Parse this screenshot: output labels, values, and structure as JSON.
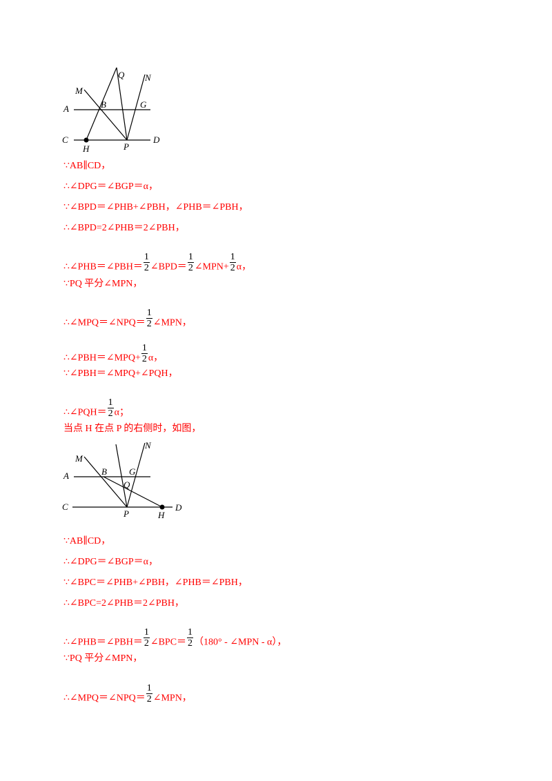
{
  "figure1": {
    "labels": {
      "Q": "Q",
      "N": "N",
      "M": "M",
      "A": "A",
      "B": "B",
      "G": "G",
      "C": "C",
      "H": "H",
      "P": "P",
      "D": "D"
    }
  },
  "figure2": {
    "labels": {
      "M": "M",
      "N": "N",
      "A": "A",
      "B": "B",
      "G": "G",
      "Q": "Q",
      "C": "C",
      "P": "P",
      "H": "H",
      "D": "D"
    }
  },
  "frac": {
    "num": "1",
    "den": "2"
  },
  "lines": {
    "l1": "∵AB∥CD，",
    "l2": "∴∠DPG＝∠BGP＝α，",
    "l3": "∵∠BPD＝∠PHB+∠PBH，∠PHB＝∠PBH，",
    "l4": "∴∠BPD=2∠PHB＝2∠PBH，",
    "l5a": "∴∠PHB＝∠PBH＝",
    "l5b": "∠BPD＝",
    "l5c": "∠MPN+",
    "l5d": "α，",
    "l6": "∵PQ 平分∠MPN，",
    "l7a": "∴∠MPQ＝∠NPQ＝",
    "l7b": "∠MPN，",
    "l8a": "∴∠PBH＝∠MPQ+",
    "l8b": "α，",
    "l9": "∵∠PBH＝∠MPQ+∠PQH，",
    "l10a": "∴∠PQH＝",
    "l10b": "α；",
    "l11": "当点 H 在点 P 的右侧时，如图，",
    "l12": "∵AB∥CD，",
    "l13": "∴∠DPG＝∠BGP＝α，",
    "l14": "∵∠BPC＝∠PHB+∠PBH，∠PHB＝∠PBH，",
    "l15": "∴∠BPC=2∠PHB＝2∠PBH，",
    "l16a": "∴∠PHB＝∠PBH＝",
    "l16b": "∠BPC＝",
    "l16c": "（180° - ∠MPN - α），",
    "l17": "∵PQ 平分∠MPN，",
    "l18a": "∴∠MPQ＝∠NPQ＝",
    "l18b": "∠MPN，"
  }
}
